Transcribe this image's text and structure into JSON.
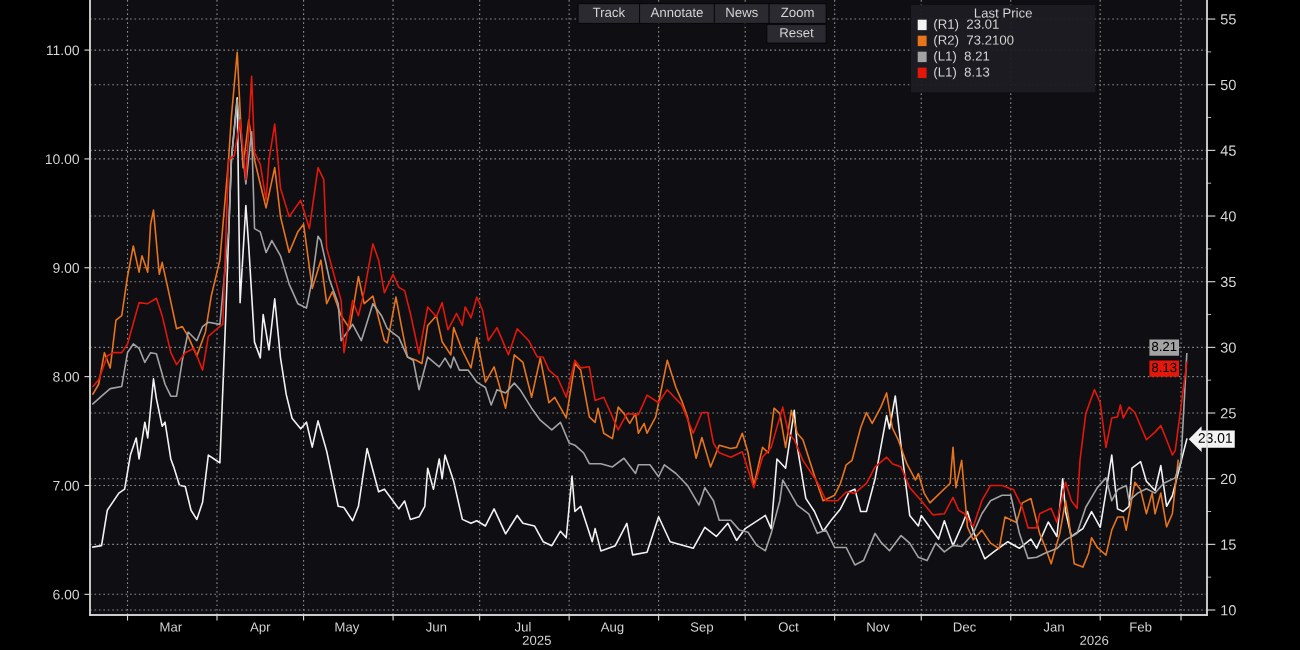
{
  "chart_data": {
    "type": "line",
    "line_style": "solid",
    "grid": true,
    "legend_title": "Last Price",
    "annotations": [
      "(R1)  23.01",
      "(R2)  73.2100",
      "(L1)  8.21",
      "(L1)  8.13",
      "Track",
      "Annotate",
      "News",
      "Zoom",
      "Reset",
      "2025",
      "2026"
    ],
    "xlim": [
      "2025-02-16",
      "2026-03-10"
    ],
    "xticks": [
      {
        "value": "2025-03-01",
        "label": null
      },
      {
        "value": "2025-03-16",
        "label": "Mar"
      },
      {
        "value": "2025-04-01",
        "label": null
      },
      {
        "value": "2025-04-16",
        "label": "Apr"
      },
      {
        "value": "2025-05-01",
        "label": null
      },
      {
        "value": "2025-05-16",
        "label": "May"
      },
      {
        "value": "2025-06-01",
        "label": null
      },
      {
        "value": "2025-06-16",
        "label": "Jun"
      },
      {
        "value": "2025-07-01",
        "label": null
      },
      {
        "value": "2025-07-16",
        "label": "Jul"
      },
      {
        "value": "2025-08-01",
        "label": null
      },
      {
        "value": "2025-08-16",
        "label": "Aug"
      },
      {
        "value": "2025-09-01",
        "label": null
      },
      {
        "value": "2025-09-16",
        "label": "Sep"
      },
      {
        "value": "2025-10-01",
        "label": null
      },
      {
        "value": "2025-10-16",
        "label": "Oct"
      },
      {
        "value": "2025-11-01",
        "label": null
      },
      {
        "value": "2025-11-16",
        "label": "Nov"
      },
      {
        "value": "2025-12-01",
        "label": null
      },
      {
        "value": "2025-12-16",
        "label": "Dec"
      },
      {
        "value": "2026-01-01",
        "label": null
      },
      {
        "value": "2026-01-16",
        "label": "Jan"
      },
      {
        "value": "2026-02-01",
        "label": null
      },
      {
        "value": "2026-02-15",
        "label": "Feb"
      },
      {
        "value": "2026-03-01",
        "label": null
      }
    ],
    "ylim": [
      5.81,
      11.46
    ],
    "yticks": [
      {
        "value": 6,
        "label": "6.00"
      },
      {
        "value": 7,
        "label": "7.00"
      },
      {
        "value": 8,
        "label": "8.00"
      },
      {
        "value": 9,
        "label": "9.00"
      },
      {
        "value": 10,
        "label": "10.00"
      },
      {
        "value": 11,
        "label": "11.00"
      }
    ],
    "y2lim": [
      9.62,
      56.45
    ],
    "y2ticks": [
      10,
      {
        "value": 12.5,
        "label": null
      },
      15,
      {
        "value": 17.5,
        "label": null
      },
      20,
      {
        "value": 22.5,
        "label": null
      },
      25,
      {
        "value": 27.5,
        "label": null
      },
      30,
      {
        "value": 32.5,
        "label": null
      },
      35,
      {
        "value": 37.5,
        "label": null
      },
      40,
      {
        "value": 42.5,
        "label": null
      },
      45,
      {
        "value": 47.5,
        "label": null
      },
      50,
      {
        "value": 52.5,
        "label": null
      },
      55
    ],
    "series": [
      {
        "color": "#f2f2f2",
        "axis": "y2",
        "x": [
          "2025-02-17",
          "2025-02-20",
          "2025-02-22",
          "2025-02-26",
          "2025-02-28",
          "2025-03-02",
          "2025-03-04",
          "2025-03-05",
          "2025-03-07",
          "2025-03-08",
          "2025-03-10",
          "2025-03-11",
          "2025-03-13",
          "2025-03-14",
          "2025-03-16",
          "2025-03-17",
          "2025-03-19",
          "2025-03-21",
          "2025-03-23",
          "2025-03-25",
          "2025-03-27",
          "2025-03-29",
          "2025-03-31",
          "2025-04-02",
          "2025-04-04",
          "2025-04-06",
          "2025-04-08",
          "2025-04-09",
          "2025-04-11",
          "2025-04-12",
          "2025-04-14",
          "2025-04-16",
          "2025-04-17",
          "2025-04-19",
          "2025-04-21",
          "2025-04-23",
          "2025-04-25",
          "2025-04-27",
          "2025-04-30",
          "2025-05-02",
          "2025-05-04",
          "2025-05-06",
          "2025-05-09",
          "2025-05-13",
          "2025-05-15",
          "2025-05-18",
          "2025-05-20",
          "2025-05-23",
          "2025-05-27",
          "2025-05-29",
          "2025-06-03",
          "2025-06-05",
          "2025-06-07",
          "2025-06-10",
          "2025-06-12",
          "2025-06-13",
          "2025-06-15",
          "2025-06-17",
          "2025-06-18",
          "2025-06-19",
          "2025-06-22",
          "2025-06-25",
          "2025-06-28",
          "2025-06-30",
          "2025-07-03",
          "2025-07-06",
          "2025-07-10",
          "2025-07-14",
          "2025-07-16",
          "2025-07-20",
          "2025-07-23",
          "2025-07-26",
          "2025-07-29",
          "2025-07-31",
          "2025-08-02",
          "2025-08-03",
          "2025-08-05",
          "2025-08-09",
          "2025-08-10",
          "2025-08-12",
          "2025-08-17",
          "2025-08-21",
          "2025-08-23",
          "2025-08-28",
          "2025-09-01",
          "2025-09-05",
          "2025-09-13",
          "2025-09-17",
          "2025-09-21",
          "2025-09-25",
          "2025-09-28",
          "2025-10-01",
          "2025-10-08",
          "2025-10-10",
          "2025-10-12",
          "2025-10-15",
          "2025-10-18",
          "2025-10-19",
          "2025-10-22",
          "2025-10-25",
          "2025-10-28",
          "2025-10-31",
          "2025-11-03",
          "2025-11-06",
          "2025-11-08",
          "2025-11-10",
          "2025-11-12",
          "2025-11-15",
          "2025-11-19",
          "2025-11-20",
          "2025-11-22",
          "2025-11-24",
          "2025-11-27",
          "2025-11-30",
          "2025-12-01",
          "2025-12-07",
          "2025-12-09",
          "2025-12-12",
          "2025-12-15",
          "2025-12-17",
          "2025-12-19",
          "2025-12-23",
          "2025-12-26",
          "2025-12-31",
          "2026-01-04",
          "2026-01-08",
          "2026-01-10",
          "2026-01-14",
          "2026-01-17",
          "2026-01-19",
          "2026-01-20",
          "2026-01-22",
          "2026-01-26",
          "2026-01-29",
          "2026-02-01",
          "2026-02-03",
          "2026-02-05",
          "2026-02-07",
          "2026-02-09",
          "2026-02-11",
          "2026-02-12",
          "2026-02-15",
          "2026-02-17",
          "2026-02-20",
          "2026-02-22",
          "2026-02-24",
          "2026-02-26",
          "2026-03-03"
        ],
        "values": [
          14.8,
          14.9,
          17.6,
          18.9,
          19.2,
          21.8,
          23.1,
          21.5,
          24.3,
          23.1,
          27.6,
          26.1,
          24.0,
          24.3,
          21.5,
          20.9,
          19.5,
          19.4,
          17.6,
          16.9,
          18.2,
          21.8,
          21.5,
          21.2,
          32.2,
          44.4,
          49.0,
          33.4,
          40.8,
          37.7,
          30.4,
          29.2,
          32.5,
          29.8,
          33.7,
          29.2,
          26.4,
          24.6,
          23.8,
          24.3,
          22.4,
          24.4,
          22.1,
          17.9,
          17.8,
          16.8,
          17.9,
          22.3,
          19.0,
          19.2,
          17.7,
          18.3,
          16.9,
          17.1,
          17.9,
          20.8,
          19.2,
          21.5,
          20.0,
          21.8,
          19.8,
          16.9,
          16.6,
          16.8,
          16.4,
          17.7,
          15.8,
          17.2,
          16.6,
          16.4,
          15.2,
          14.9,
          16.0,
          15.5,
          20.2,
          17.5,
          17.9,
          15.2,
          16.2,
          14.5,
          14.9,
          16.6,
          14.2,
          14.4,
          17.1,
          15.2,
          14.7,
          16.3,
          15.6,
          16.6,
          15.3,
          16.2,
          17.2,
          16.2,
          21.5,
          20.8,
          25.2,
          22.5,
          18.5,
          17.5,
          16.0,
          16.9,
          17.7,
          19.0,
          19.2,
          17.5,
          17.5,
          20.0,
          24.8,
          23.8,
          26.3,
          22.5,
          17.2,
          16.4,
          17.2,
          15.4,
          16.8,
          14.9,
          16.4,
          17.5,
          16.0,
          13.9,
          14.4,
          15.2,
          14.7,
          15.4,
          14.7,
          16.7,
          15.6,
          20.0,
          17.5,
          15.6,
          16.2,
          17.5,
          16.3,
          19.0,
          21.8,
          17.7,
          17.5,
          17.9,
          20.8,
          21.3,
          19.8,
          19.1,
          21.0,
          17.9,
          18.7,
          23.01
        ],
        "value_labels": [
          null,
          null,
          null,
          null,
          null,
          null,
          null,
          null,
          null,
          null,
          null,
          null,
          null,
          null,
          null,
          null,
          null,
          null,
          null,
          null,
          null,
          null,
          null,
          null,
          null,
          null,
          null,
          null,
          null,
          null,
          null,
          null,
          null,
          null,
          null,
          null,
          null,
          null,
          null,
          null,
          null,
          null,
          null,
          null,
          null,
          null,
          null,
          null,
          null,
          null,
          null,
          null,
          null,
          null,
          null,
          null,
          null,
          null,
          null,
          null,
          null,
          null,
          null,
          null,
          null,
          null,
          null,
          null,
          null,
          null,
          null,
          null,
          null,
          null,
          null,
          null,
          null,
          null,
          null,
          null,
          null,
          null,
          null,
          null,
          null,
          null,
          null,
          null,
          null,
          null,
          null,
          null,
          null,
          null,
          null,
          null,
          null,
          null,
          null,
          null,
          null,
          null,
          null,
          null,
          null,
          null,
          null,
          null,
          null,
          null,
          null,
          null,
          null,
          null,
          null,
          null,
          null,
          null,
          null,
          null,
          null,
          null,
          null,
          null,
          null,
          null,
          null,
          null,
          null,
          null,
          null,
          null,
          null,
          null,
          null,
          null,
          null,
          null,
          null,
          null,
          null,
          null,
          null,
          null,
          null,
          null,
          null,
          "23.01"
        ]
      },
      {
        "color": "#e8741c",
        "axis": "y",
        "x": [
          "2025-02-17",
          "2025-02-19",
          "2025-02-21",
          "2025-02-23",
          "2025-02-25",
          "2025-02-27",
          "2025-03-01",
          "2025-03-03",
          "2025-03-05",
          "2025-03-06",
          "2025-03-08",
          "2025-03-09",
          "2025-03-10",
          "2025-03-12",
          "2025-03-13",
          "2025-03-15",
          "2025-03-18",
          "2025-03-20",
          "2025-03-22",
          "2025-03-25",
          "2025-03-28",
          "2025-03-30",
          "2025-04-02",
          "2025-04-05",
          "2025-04-06",
          "2025-04-08",
          "2025-04-10",
          "2025-04-12",
          "2025-04-14",
          "2025-04-16",
          "2025-04-18",
          "2025-04-21",
          "2025-04-23",
          "2025-04-26",
          "2025-04-29",
          "2025-05-01",
          "2025-05-04",
          "2025-05-07",
          "2025-05-09",
          "2025-05-11",
          "2025-05-14",
          "2025-05-17",
          "2025-05-20",
          "2025-05-22",
          "2025-05-25",
          "2025-05-29",
          "2025-05-30",
          "2025-06-02",
          "2025-06-04",
          "2025-06-06",
          "2025-06-09",
          "2025-06-11",
          "2025-06-13",
          "2025-06-16",
          "2025-06-18",
          "2025-06-21",
          "2025-06-22",
          "2025-06-25",
          "2025-06-28",
          "2025-06-30",
          "2025-07-03",
          "2025-07-06",
          "2025-07-10",
          "2025-07-13",
          "2025-07-16",
          "2025-07-19",
          "2025-07-22",
          "2025-07-25",
          "2025-07-27",
          "2025-07-31",
          "2025-08-03",
          "2025-08-05",
          "2025-08-08",
          "2025-08-10",
          "2025-08-11",
          "2025-08-13",
          "2025-08-16",
          "2025-08-18",
          "2025-08-20",
          "2025-08-22",
          "2025-08-24",
          "2025-08-25",
          "2025-08-27",
          "2025-08-28",
          "2025-08-31",
          "2025-09-04",
          "2025-09-07",
          "2025-09-09",
          "2025-09-11",
          "2025-09-14",
          "2025-09-16",
          "2025-09-19",
          "2025-09-22",
          "2025-09-26",
          "2025-09-28",
          "2025-09-30",
          "2025-10-02",
          "2025-10-04",
          "2025-10-07",
          "2025-10-09",
          "2025-10-11",
          "2025-10-13",
          "2025-10-15",
          "2025-10-17",
          "2025-10-19",
          "2025-10-21",
          "2025-10-25",
          "2025-10-28",
          "2025-11-01",
          "2025-11-03",
          "2025-11-05",
          "2025-11-07",
          "2025-11-10",
          "2025-11-12",
          "2025-11-14",
          "2025-11-17",
          "2025-11-19",
          "2025-11-21",
          "2025-11-23",
          "2025-11-26",
          "2025-11-29",
          "2025-11-30",
          "2025-12-02",
          "2025-12-04",
          "2025-12-11",
          "2025-12-12",
          "2025-12-13",
          "2025-12-15",
          "2025-12-17",
          "2025-12-19",
          "2025-12-22",
          "2025-12-25",
          "2025-12-28",
          "2025-12-30",
          "2026-01-03",
          "2026-01-05",
          "2026-01-08",
          "2026-01-11",
          "2026-01-13",
          "2026-01-15",
          "2026-01-18",
          "2026-01-20",
          "2026-01-21",
          "2026-01-23",
          "2026-01-26",
          "2026-01-28",
          "2026-01-29",
          "2026-01-31",
          "2026-02-03",
          "2026-02-05",
          "2026-02-07",
          "2026-02-09",
          "2026-02-10",
          "2026-02-13",
          "2026-02-15",
          "2026-02-17",
          "2026-02-19",
          "2026-02-20",
          "2026-02-22",
          "2026-02-24",
          "2026-02-26",
          "2026-02-28"
        ],
        "values": [
          7.84,
          7.93,
          8.22,
          8.08,
          8.52,
          8.56,
          8.92,
          9.2,
          8.96,
          9.11,
          8.96,
          9.4,
          9.53,
          8.94,
          9.05,
          8.81,
          8.44,
          8.46,
          8.37,
          8.19,
          8.41,
          8.74,
          9.07,
          9.99,
          10.39,
          10.98,
          9.92,
          10.36,
          9.99,
          9.77,
          9.55,
          9.92,
          9.47,
          9.14,
          9.33,
          9.4,
          8.81,
          9.07,
          8.67,
          8.78,
          8.56,
          8.44,
          8.92,
          8.67,
          8.74,
          8.33,
          8.31,
          8.73,
          8.45,
          8.18,
          8.15,
          8.12,
          8.47,
          8.56,
          8.32,
          8.2,
          8.45,
          8.24,
          8.08,
          8.36,
          7.95,
          8.09,
          7.71,
          8.2,
          8.13,
          7.81,
          8.17,
          7.76,
          7.81,
          7.62,
          8.12,
          8.06,
          7.63,
          7.58,
          7.71,
          7.48,
          7.43,
          7.72,
          7.66,
          7.57,
          7.66,
          7.48,
          7.57,
          7.48,
          7.63,
          8.15,
          7.9,
          7.78,
          7.63,
          7.25,
          7.44,
          7.17,
          7.37,
          7.34,
          7.35,
          7.48,
          7.3,
          7.0,
          7.35,
          7.3,
          7.71,
          7.66,
          7.35,
          7.69,
          7.48,
          7.42,
          7.09,
          6.86,
          6.91,
          7.02,
          7.19,
          7.23,
          7.53,
          7.67,
          7.57,
          7.72,
          7.85,
          7.53,
          7.42,
          7.2,
          7.05,
          7.11,
          6.93,
          6.84,
          7.02,
          7.35,
          6.98,
          7.23,
          6.62,
          6.5,
          6.59,
          6.47,
          6.42,
          6.71,
          6.66,
          6.84,
          6.88,
          6.56,
          6.43,
          6.28,
          6.56,
          6.86,
          6.71,
          6.28,
          6.25,
          6.38,
          6.52,
          6.43,
          6.36,
          6.59,
          6.71,
          6.71,
          6.59,
          7.03,
          6.96,
          6.74,
          6.93,
          6.74,
          6.93,
          6.62,
          6.74,
          7.23
        ]
      },
      {
        "color": "#a3a3a3",
        "axis": "y",
        "x": [
          "2025-02-17",
          "2025-02-20",
          "2025-02-23",
          "2025-02-27",
          "2025-03-01",
          "2025-03-03",
          "2025-03-05",
          "2025-03-07",
          "2025-03-09",
          "2025-03-11",
          "2025-03-14",
          "2025-03-16",
          "2025-03-18",
          "2025-03-20",
          "2025-03-22",
          "2025-03-25",
          "2025-03-27",
          "2025-03-29",
          "2025-04-02",
          "2025-04-05",
          "2025-04-06",
          "2025-04-08",
          "2025-04-11",
          "2025-04-13",
          "2025-04-14",
          "2025-04-16",
          "2025-04-18",
          "2025-04-20",
          "2025-04-23",
          "2025-04-26",
          "2025-04-29",
          "2025-05-02",
          "2025-05-04",
          "2025-05-06",
          "2025-05-07",
          "2025-05-10",
          "2025-05-13",
          "2025-05-14",
          "2025-05-18",
          "2025-05-21",
          "2025-05-25",
          "2025-05-28",
          "2025-05-30",
          "2025-06-03",
          "2025-06-06",
          "2025-06-08",
          "2025-06-10",
          "2025-06-13",
          "2025-06-17",
          "2025-06-19",
          "2025-06-21",
          "2025-06-22",
          "2025-06-24",
          "2025-06-27",
          "2025-06-30",
          "2025-07-03",
          "2025-07-05",
          "2025-07-07",
          "2025-07-10",
          "2025-07-13",
          "2025-07-15",
          "2025-07-19",
          "2025-07-22",
          "2025-07-26",
          "2025-07-29",
          "2025-08-01",
          "2025-08-03",
          "2025-08-06",
          "2025-08-08",
          "2025-08-12",
          "2025-08-16",
          "2025-08-20",
          "2025-08-24",
          "2025-08-25",
          "2025-08-29",
          "2025-09-01",
          "2025-09-03",
          "2025-09-07",
          "2025-09-11",
          "2025-09-15",
          "2025-09-17",
          "2025-09-20",
          "2025-09-22",
          "2025-09-26",
          "2025-09-29",
          "2025-10-02",
          "2025-10-05",
          "2025-10-08",
          "2025-10-10",
          "2025-10-13",
          "2025-10-14",
          "2025-10-16",
          "2025-10-19",
          "2025-10-23",
          "2025-10-26",
          "2025-10-29",
          "2025-11-01",
          "2025-11-05",
          "2025-11-08",
          "2025-11-11",
          "2025-11-15",
          "2025-11-17",
          "2025-11-20",
          "2025-11-24",
          "2025-11-27",
          "2025-11-30",
          "2025-12-03",
          "2025-12-06",
          "2025-12-09",
          "2025-12-12",
          "2025-12-15",
          "2025-12-19",
          "2025-12-22",
          "2025-12-25",
          "2025-12-29",
          "2026-01-01",
          "2026-01-04",
          "2026-01-07",
          "2026-01-10",
          "2026-01-13",
          "2026-01-17",
          "2026-01-20",
          "2026-01-24",
          "2026-01-27",
          "2026-01-31",
          "2026-02-03",
          "2026-02-05",
          "2026-02-07",
          "2026-02-10",
          "2026-02-11",
          "2026-02-14",
          "2026-02-17",
          "2026-02-20",
          "2026-02-23",
          "2026-02-27",
          "2026-03-01",
          "2026-03-03"
        ],
        "values": [
          7.75,
          7.82,
          7.89,
          7.91,
          8.22,
          8.3,
          8.26,
          8.13,
          8.22,
          8.21,
          7.93,
          7.82,
          7.82,
          8.15,
          8.41,
          8.33,
          8.46,
          8.5,
          8.48,
          9.33,
          9.99,
          10.54,
          9.77,
          10.25,
          9.36,
          9.33,
          9.14,
          9.25,
          9.11,
          8.85,
          8.67,
          8.63,
          8.89,
          9.29,
          9.25,
          8.89,
          8.67,
          8.33,
          8.48,
          8.33,
          8.67,
          8.56,
          8.44,
          8.36,
          8.18,
          8.15,
          7.88,
          8.18,
          8.09,
          8.17,
          8.08,
          8.18,
          8.06,
          8.06,
          7.95,
          7.9,
          7.74,
          7.88,
          7.85,
          7.94,
          7.88,
          7.71,
          7.6,
          7.51,
          7.58,
          7.39,
          7.37,
          7.3,
          7.2,
          7.2,
          7.17,
          7.25,
          7.11,
          7.19,
          7.19,
          7.08,
          7.19,
          7.11,
          7.0,
          6.82,
          6.98,
          6.86,
          6.68,
          6.68,
          6.59,
          6.57,
          6.45,
          6.4,
          6.56,
          6.86,
          7.05,
          6.96,
          6.82,
          6.74,
          6.56,
          6.59,
          6.43,
          6.43,
          6.27,
          6.31,
          6.56,
          6.48,
          6.4,
          6.54,
          6.47,
          6.34,
          6.31,
          6.47,
          6.39,
          6.45,
          6.44,
          6.56,
          6.74,
          6.86,
          6.91,
          6.91,
          6.56,
          6.33,
          6.34,
          6.38,
          6.42,
          6.5,
          6.56,
          6.8,
          6.98,
          7.07,
          6.86,
          6.96,
          7.0,
          6.86,
          6.93,
          6.97,
          6.93,
          7.02,
          7.07,
          7.23,
          8.21
        ],
        "value_labels": [
          null,
          null,
          null,
          null,
          null,
          null,
          null,
          null,
          null,
          null,
          null,
          null,
          null,
          null,
          null,
          null,
          null,
          null,
          null,
          null,
          null,
          null,
          null,
          null,
          null,
          null,
          null,
          null,
          null,
          null,
          null,
          null,
          null,
          null,
          null,
          null,
          null,
          null,
          null,
          null,
          null,
          null,
          null,
          null,
          null,
          null,
          null,
          null,
          null,
          null,
          null,
          null,
          null,
          null,
          null,
          null,
          null,
          null,
          null,
          null,
          null,
          null,
          null,
          null,
          null,
          null,
          null,
          null,
          null,
          null,
          null,
          null,
          null,
          null,
          null,
          null,
          null,
          null,
          null,
          null,
          null,
          null,
          null,
          null,
          null,
          null,
          null,
          null,
          null,
          null,
          null,
          null,
          null,
          null,
          null,
          null,
          null,
          null,
          null,
          null,
          null,
          null,
          null,
          null,
          null,
          null,
          null,
          null,
          null,
          null,
          null,
          null,
          null,
          null,
          null,
          null,
          null,
          null,
          null,
          null,
          null,
          null,
          null,
          null,
          null,
          null,
          null,
          null,
          null,
          null,
          null,
          null,
          null,
          null,
          null,
          null,
          "8.21"
        ]
      },
      {
        "color": "#e3170a",
        "axis": "y",
        "x": [
          "2025-02-17",
          "2025-02-19",
          "2025-02-22",
          "2025-02-24",
          "2025-02-27",
          "2025-03-01",
          "2025-03-05",
          "2025-03-08",
          "2025-03-11",
          "2025-03-13",
          "2025-03-16",
          "2025-03-18",
          "2025-03-21",
          "2025-03-24",
          "2025-03-27",
          "2025-03-29",
          "2025-04-01",
          "2025-04-03",
          "2025-04-05",
          "2025-04-07",
          "2025-04-09",
          "2025-04-11",
          "2025-04-13",
          "2025-04-14",
          "2025-04-16",
          "2025-04-18",
          "2025-04-19",
          "2025-04-21",
          "2025-04-23",
          "2025-04-26",
          "2025-04-30",
          "2025-05-03",
          "2025-05-06",
          "2025-05-08",
          "2025-05-09",
          "2025-05-12",
          "2025-05-14",
          "2025-05-15",
          "2025-05-18",
          "2025-05-20",
          "2025-05-22",
          "2025-05-25",
          "2025-05-27",
          "2025-05-29",
          "2025-06-01",
          "2025-06-03",
          "2025-06-05",
          "2025-06-07",
          "2025-06-10",
          "2025-06-13",
          "2025-06-16",
          "2025-06-18",
          "2025-06-20",
          "2025-06-23",
          "2025-06-25",
          "2025-06-26",
          "2025-06-28",
          "2025-06-30",
          "2025-07-02",
          "2025-07-04",
          "2025-07-07",
          "2025-07-11",
          "2025-07-14",
          "2025-07-18",
          "2025-07-21",
          "2025-07-23",
          "2025-07-25",
          "2025-07-28",
          "2025-07-31",
          "2025-08-03",
          "2025-08-05",
          "2025-08-08",
          "2025-08-10",
          "2025-08-13",
          "2025-08-18",
          "2025-08-21",
          "2025-08-25",
          "2025-08-28",
          "2025-09-01",
          "2025-09-04",
          "2025-09-09",
          "2025-09-13",
          "2025-09-16",
          "2025-09-18",
          "2025-09-20",
          "2025-09-22",
          "2025-09-26",
          "2025-09-30",
          "2025-10-04",
          "2025-10-07",
          "2025-10-10",
          "2025-10-14",
          "2025-10-16",
          "2025-10-18",
          "2025-10-21",
          "2025-10-26",
          "2025-10-29",
          "2025-11-02",
          "2025-11-05",
          "2025-11-08",
          "2025-11-12",
          "2025-11-15",
          "2025-11-19",
          "2025-11-21",
          "2025-11-24",
          "2025-11-27",
          "2025-12-01",
          "2025-12-05",
          "2025-12-09",
          "2025-12-12",
          "2025-12-14",
          "2025-12-16",
          "2025-12-19",
          "2025-12-22",
          "2025-12-25",
          "2025-12-29",
          "2026-01-02",
          "2026-01-05",
          "2026-01-07",
          "2026-01-10",
          "2026-01-11",
          "2026-01-15",
          "2026-01-17",
          "2026-01-20",
          "2026-01-22",
          "2026-01-24",
          "2026-01-25",
          "2026-01-27",
          "2026-01-30",
          "2026-02-01",
          "2026-02-03",
          "2026-02-05",
          "2026-02-07",
          "2026-02-08",
          "2026-02-09",
          "2026-02-11",
          "2026-02-13",
          "2026-02-17",
          "2026-02-20",
          "2026-02-22",
          "2026-02-24",
          "2026-02-26",
          "2026-02-27",
          "2026-03-03"
        ],
        "values": [
          7.91,
          7.97,
          8.19,
          8.22,
          8.22,
          8.3,
          8.68,
          8.67,
          8.72,
          8.56,
          8.22,
          8.11,
          8.22,
          8.26,
          8.06,
          8.37,
          8.44,
          8.48,
          9.99,
          10.03,
          10.36,
          9.81,
          10.76,
          10.06,
          9.95,
          9.62,
          9.99,
          10.32,
          9.73,
          9.47,
          9.62,
          9.36,
          9.92,
          9.81,
          9.18,
          8.89,
          8.7,
          8.22,
          8.7,
          8.56,
          8.78,
          9.22,
          9.07,
          8.77,
          8.94,
          8.82,
          8.79,
          8.58,
          8.21,
          8.64,
          8.55,
          8.68,
          8.43,
          8.58,
          8.47,
          8.64,
          8.54,
          8.73,
          8.61,
          8.33,
          8.45,
          8.2,
          8.44,
          8.33,
          8.18,
          8.18,
          8.06,
          7.99,
          7.81,
          8.15,
          8.08,
          8.09,
          7.78,
          7.81,
          7.51,
          7.66,
          7.65,
          7.83,
          7.76,
          7.88,
          7.74,
          7.48,
          7.67,
          7.67,
          7.39,
          7.3,
          7.26,
          7.31,
          6.98,
          7.26,
          7.35,
          7.72,
          7.48,
          7.42,
          7.23,
          7.03,
          6.86,
          6.86,
          6.94,
          6.93,
          7.02,
          7.17,
          7.26,
          7.2,
          7.17,
          6.98,
          6.86,
          6.73,
          6.74,
          6.89,
          6.77,
          6.74,
          6.62,
          6.86,
          7.0,
          7.0,
          6.96,
          6.8,
          6.61,
          6.61,
          6.74,
          6.79,
          6.66,
          7.03,
          6.86,
          6.79,
          7.23,
          7.66,
          7.88,
          7.76,
          7.35,
          7.62,
          7.63,
          7.74,
          7.62,
          7.72,
          7.67,
          7.42,
          7.49,
          7.55,
          7.42,
          7.28,
          7.32,
          8.13
        ],
        "value_labels": [
          null,
          null,
          null,
          null,
          null,
          null,
          null,
          null,
          null,
          null,
          null,
          null,
          null,
          null,
          null,
          null,
          null,
          null,
          null,
          null,
          null,
          null,
          null,
          null,
          null,
          null,
          null,
          null,
          null,
          null,
          null,
          null,
          null,
          null,
          null,
          null,
          null,
          null,
          null,
          null,
          null,
          null,
          null,
          null,
          null,
          null,
          null,
          null,
          null,
          null,
          null,
          null,
          null,
          null,
          null,
          null,
          null,
          null,
          null,
          null,
          null,
          null,
          null,
          null,
          null,
          null,
          null,
          null,
          null,
          null,
          null,
          null,
          null,
          null,
          null,
          null,
          null,
          null,
          null,
          null,
          null,
          null,
          null,
          null,
          null,
          null,
          null,
          null,
          null,
          null,
          null,
          null,
          null,
          null,
          null,
          null,
          null,
          null,
          null,
          null,
          null,
          null,
          null,
          null,
          null,
          null,
          null,
          null,
          null,
          null,
          null,
          null,
          null,
          null,
          null,
          null,
          null,
          null,
          null,
          null,
          null,
          null,
          null,
          null,
          null,
          null,
          null,
          null,
          null,
          null,
          null,
          null,
          null,
          null,
          null,
          null,
          null,
          null,
          null,
          null,
          null,
          null,
          null,
          "8.13"
        ]
      }
    ]
  }
}
